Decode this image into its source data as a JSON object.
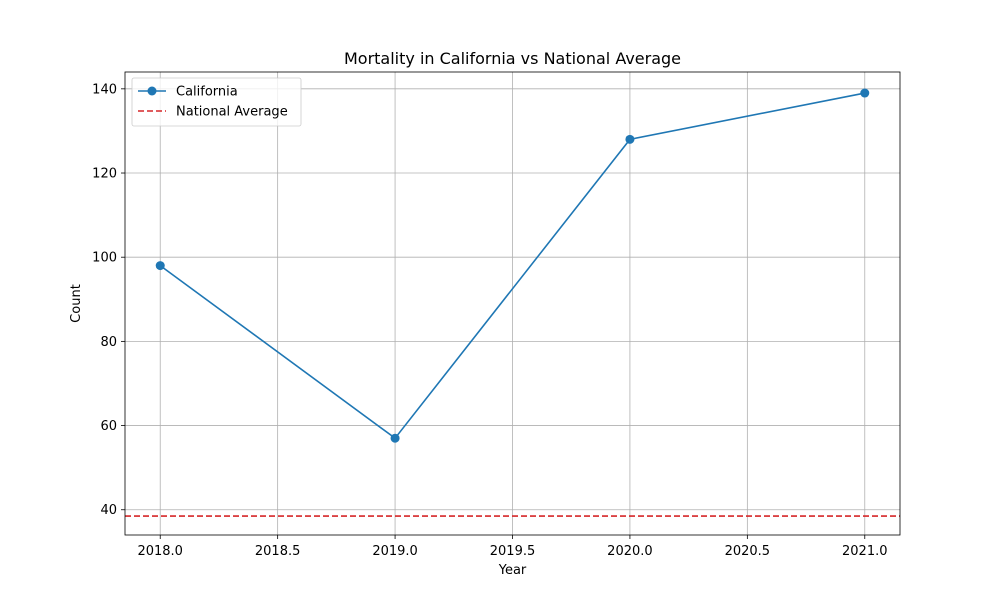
{
  "chart_data": {
    "type": "line",
    "title": "Mortality in California vs National Average",
    "xlabel": "Year",
    "ylabel": "Count",
    "xlim": [
      2017.85,
      2021.15
    ],
    "ylim": [
      34,
      144
    ],
    "x_ticks": [
      2018.0,
      2018.5,
      2019.0,
      2019.5,
      2020.0,
      2020.5,
      2021.0
    ],
    "x_tick_labels": [
      "2018.0",
      "2018.5",
      "2019.0",
      "2019.5",
      "2020.0",
      "2020.5",
      "2021.0"
    ],
    "y_ticks": [
      40,
      60,
      80,
      100,
      120,
      140
    ],
    "y_tick_labels": [
      "40",
      "60",
      "80",
      "100",
      "120",
      "140"
    ],
    "grid": true,
    "legend_position": "top-left",
    "series": [
      {
        "name": "California",
        "x": [
          2018,
          2019,
          2020,
          2021
        ],
        "y": [
          98,
          57,
          128,
          139
        ],
        "color": "#1f77b4",
        "style": "solid",
        "marker": "circle"
      }
    ],
    "reference_lines": [
      {
        "name": "National Average",
        "y": 38.5,
        "color": "#d62728",
        "style": "dashed"
      }
    ]
  }
}
